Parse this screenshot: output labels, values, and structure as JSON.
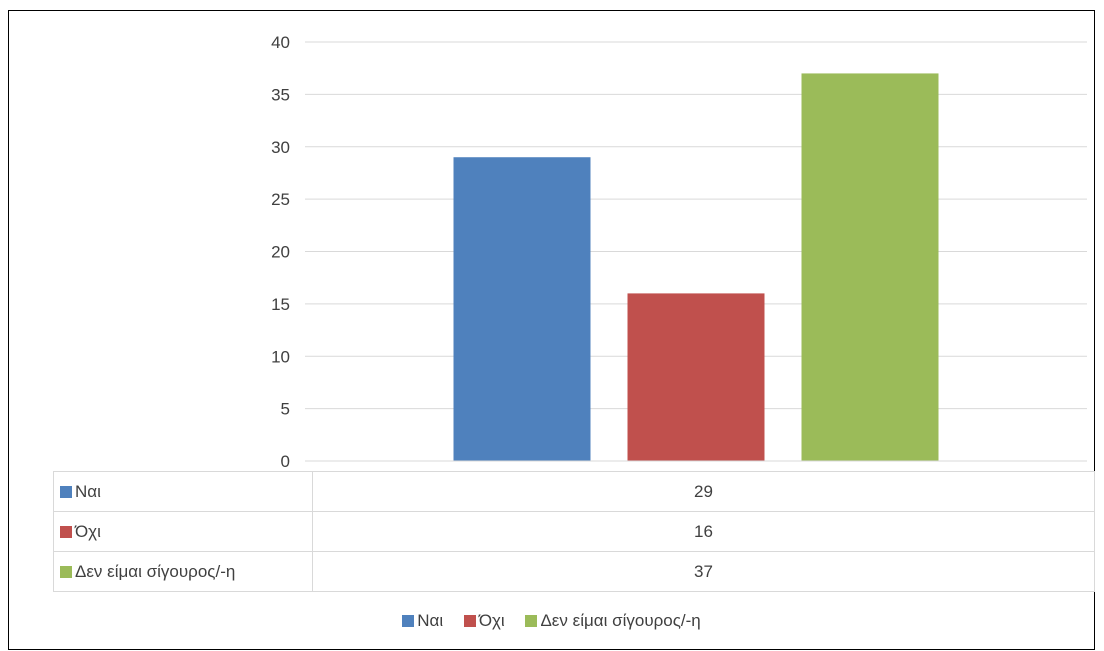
{
  "chart_data": {
    "type": "bar",
    "categories": [
      ""
    ],
    "series": [
      {
        "name": "Ναι",
        "values": [
          29
        ],
        "color": "#4f81bd"
      },
      {
        "name": "Όχι",
        "values": [
          16
        ],
        "color": "#c0504d"
      },
      {
        "name": "Δεν είμαι σίγουρος/-η",
        "values": [
          37
        ],
        "color": "#9bbb59"
      }
    ],
    "title": "",
    "xlabel": "",
    "ylabel": "",
    "ylim": [
      0,
      40
    ],
    "yticks": [
      "0",
      "5",
      "10",
      "15",
      "20",
      "25",
      "30",
      "35",
      "40"
    ],
    "grid": true,
    "legend_position": "bottom",
    "data_table": true
  },
  "table": {
    "rows": [
      {
        "label": "Ναι",
        "value": "29",
        "color": "#4f81bd"
      },
      {
        "label": "Όχι",
        "value": "16",
        "color": "#c0504d"
      },
      {
        "label": "Δεν είμαι σίγουρος/-η",
        "value": "37",
        "color": "#9bbb59"
      }
    ]
  },
  "legend": {
    "items": [
      {
        "label": "Ναι",
        "color": "#4f81bd"
      },
      {
        "label": "Όχι",
        "color": "#c0504d"
      },
      {
        "label": "Δεν είμαι σίγουρος/-η",
        "color": "#9bbb59"
      }
    ]
  }
}
